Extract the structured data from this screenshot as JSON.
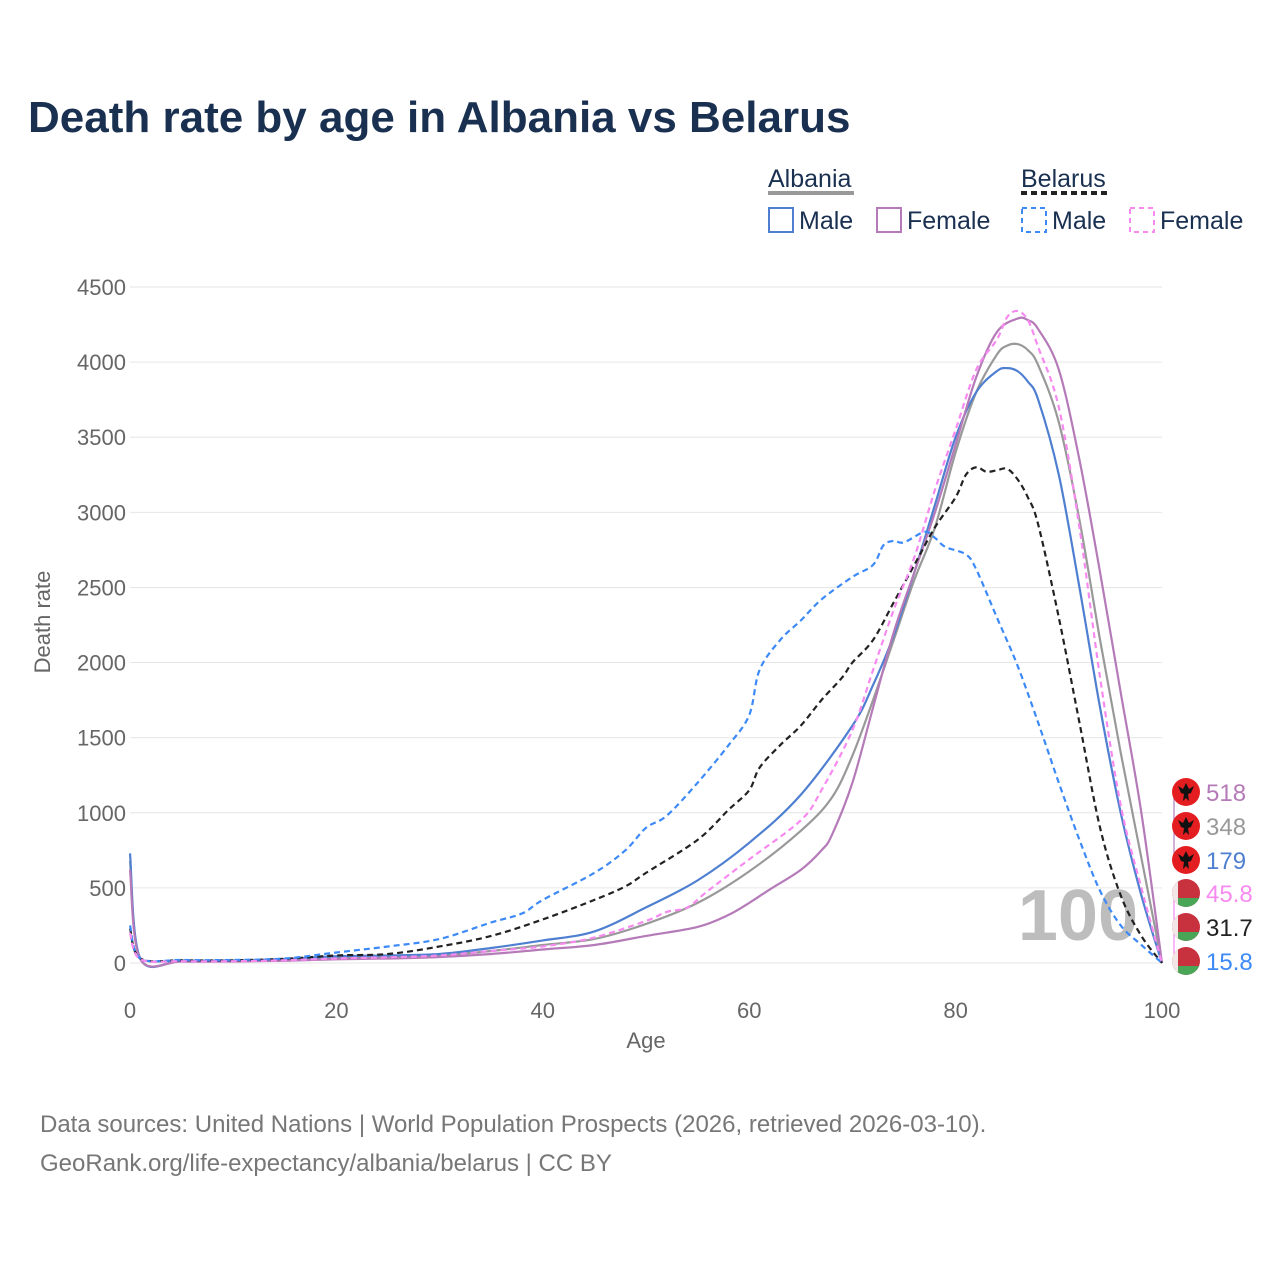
{
  "chart_data": {
    "type": "line",
    "title": "Death rate by age in Albania vs Belarus",
    "xlabel": "Age",
    "ylabel": "Death rate",
    "xlim": [
      0,
      100
    ],
    "ylim": [
      0,
      4500
    ],
    "xticks": [
      0,
      20,
      40,
      60,
      80,
      100
    ],
    "yticks": [
      0,
      500,
      1000,
      1500,
      2000,
      2500,
      3000,
      3500,
      4000,
      4500
    ],
    "grid": true,
    "legend": {
      "placement": "top-right",
      "groups": [
        {
          "label": "Albania",
          "items": [
            "Male",
            "Female"
          ]
        },
        {
          "label": "Belarus",
          "items": [
            "Male",
            "Female"
          ]
        }
      ]
    },
    "highlight_age": "100",
    "series": [
      {
        "name": "Albania Total",
        "color": "#999999",
        "dashed": false,
        "points": [
          [
            0,
            680
          ],
          [
            1,
            28
          ],
          [
            5,
            12
          ],
          [
            10,
            12
          ],
          [
            15,
            20
          ],
          [
            20,
            35
          ],
          [
            25,
            40
          ],
          [
            30,
            50
          ],
          [
            35,
            80
          ],
          [
            40,
            120
          ],
          [
            45,
            160
          ],
          [
            50,
            260
          ],
          [
            55,
            400
          ],
          [
            60,
            610
          ],
          [
            65,
            880
          ],
          [
            68,
            1100
          ],
          [
            70,
            1380
          ],
          [
            72,
            1750
          ],
          [
            74,
            2150
          ],
          [
            76,
            2550
          ],
          [
            78,
            2900
          ],
          [
            80,
            3400
          ],
          [
            82,
            3800
          ],
          [
            84,
            4050
          ],
          [
            85,
            4110
          ],
          [
            86,
            4120
          ],
          [
            87,
            4080
          ],
          [
            88,
            3980
          ],
          [
            90,
            3600
          ],
          [
            92,
            2950
          ],
          [
            94,
            2150
          ],
          [
            96,
            1400
          ],
          [
            98,
            700
          ],
          [
            100,
            0
          ]
        ]
      },
      {
        "name": "Albania Male",
        "color": "#4f7fd0",
        "dashed": false,
        "points": [
          [
            0,
            730
          ],
          [
            1,
            30
          ],
          [
            5,
            15
          ],
          [
            10,
            15
          ],
          [
            15,
            25
          ],
          [
            20,
            45
          ],
          [
            25,
            50
          ],
          [
            30,
            60
          ],
          [
            35,
            100
          ],
          [
            40,
            150
          ],
          [
            45,
            210
          ],
          [
            50,
            370
          ],
          [
            55,
            550
          ],
          [
            60,
            800
          ],
          [
            65,
            1120
          ],
          [
            70,
            1580
          ],
          [
            72,
            1850
          ],
          [
            74,
            2180
          ],
          [
            76,
            2600
          ],
          [
            78,
            3050
          ],
          [
            80,
            3500
          ],
          [
            82,
            3800
          ],
          [
            84,
            3940
          ],
          [
            85,
            3960
          ],
          [
            86,
            3940
          ],
          [
            87,
            3870
          ],
          [
            88,
            3750
          ],
          [
            90,
            3250
          ],
          [
            92,
            2500
          ],
          [
            94,
            1700
          ],
          [
            96,
            1000
          ],
          [
            98,
            450
          ],
          [
            100,
            0
          ]
        ]
      },
      {
        "name": "Albania Female",
        "color": "#b57ab8",
        "dashed": false,
        "points": [
          [
            0,
            620
          ],
          [
            1,
            25
          ],
          [
            5,
            10
          ],
          [
            10,
            10
          ],
          [
            15,
            15
          ],
          [
            20,
            25
          ],
          [
            25,
            30
          ],
          [
            30,
            40
          ],
          [
            35,
            60
          ],
          [
            40,
            90
          ],
          [
            45,
            120
          ],
          [
            50,
            180
          ],
          [
            55,
            240
          ],
          [
            58,
            320
          ],
          [
            60,
            400
          ],
          [
            62,
            490
          ],
          [
            65,
            620
          ],
          [
            67,
            750
          ],
          [
            68,
            850
          ],
          [
            70,
            1200
          ],
          [
            72,
            1700
          ],
          [
            74,
            2200
          ],
          [
            76,
            2600
          ],
          [
            78,
            3000
          ],
          [
            80,
            3450
          ],
          [
            82,
            3900
          ],
          [
            84,
            4200
          ],
          [
            86,
            4290
          ],
          [
            87,
            4280
          ],
          [
            88,
            4220
          ],
          [
            90,
            3950
          ],
          [
            92,
            3350
          ],
          [
            94,
            2600
          ],
          [
            96,
            1800
          ],
          [
            98,
            1000
          ],
          [
            100,
            0
          ]
        ]
      },
      {
        "name": "Belarus Total",
        "color": "#222222",
        "dashed": true,
        "points": [
          [
            0,
            230
          ],
          [
            1,
            30
          ],
          [
            5,
            18
          ],
          [
            10,
            18
          ],
          [
            15,
            28
          ],
          [
            20,
            50
          ],
          [
            25,
            60
          ],
          [
            30,
            110
          ],
          [
            35,
            180
          ],
          [
            40,
            290
          ],
          [
            45,
            420
          ],
          [
            48,
            510
          ],
          [
            50,
            600
          ],
          [
            55,
            820
          ],
          [
            58,
            1020
          ],
          [
            60,
            1150
          ],
          [
            61,
            1300
          ],
          [
            63,
            1450
          ],
          [
            65,
            1580
          ],
          [
            67,
            1750
          ],
          [
            69,
            1900
          ],
          [
            70,
            2000
          ],
          [
            72,
            2150
          ],
          [
            74,
            2400
          ],
          [
            76,
            2650
          ],
          [
            78,
            2900
          ],
          [
            80,
            3100
          ],
          [
            81,
            3250
          ],
          [
            82,
            3300
          ],
          [
            83,
            3270
          ],
          [
            84,
            3280
          ],
          [
            85,
            3290
          ],
          [
            86,
            3220
          ],
          [
            87,
            3100
          ],
          [
            88,
            2920
          ],
          [
            90,
            2300
          ],
          [
            92,
            1600
          ],
          [
            94,
            900
          ],
          [
            96,
            450
          ],
          [
            98,
            180
          ],
          [
            100,
            0
          ]
        ]
      },
      {
        "name": "Belarus Male",
        "color": "#3d8af7",
        "dashed": true,
        "points": [
          [
            0,
            250
          ],
          [
            1,
            30
          ],
          [
            5,
            20
          ],
          [
            10,
            20
          ],
          [
            15,
            30
          ],
          [
            20,
            70
          ],
          [
            25,
            110
          ],
          [
            30,
            160
          ],
          [
            35,
            270
          ],
          [
            38,
            330
          ],
          [
            40,
            420
          ],
          [
            45,
            600
          ],
          [
            48,
            750
          ],
          [
            50,
            900
          ],
          [
            52,
            980
          ],
          [
            55,
            1200
          ],
          [
            58,
            1450
          ],
          [
            60,
            1650
          ],
          [
            61,
            1950
          ],
          [
            63,
            2150
          ],
          [
            65,
            2280
          ],
          [
            67,
            2420
          ],
          [
            70,
            2570
          ],
          [
            72,
            2650
          ],
          [
            73,
            2780
          ],
          [
            74,
            2810
          ],
          [
            75,
            2800
          ],
          [
            77,
            2870
          ],
          [
            78,
            2830
          ],
          [
            79,
            2770
          ],
          [
            81,
            2720
          ],
          [
            82,
            2620
          ],
          [
            84,
            2300
          ],
          [
            86,
            1980
          ],
          [
            88,
            1600
          ],
          [
            90,
            1200
          ],
          [
            92,
            820
          ],
          [
            94,
            480
          ],
          [
            96,
            250
          ],
          [
            98,
            120
          ],
          [
            100,
            0
          ]
        ]
      },
      {
        "name": "Belarus Female",
        "color": "#f78af0",
        "dashed": true,
        "points": [
          [
            0,
            200
          ],
          [
            1,
            25
          ],
          [
            5,
            12
          ],
          [
            10,
            12
          ],
          [
            15,
            18
          ],
          [
            20,
            30
          ],
          [
            25,
            38
          ],
          [
            30,
            50
          ],
          [
            35,
            80
          ],
          [
            40,
            110
          ],
          [
            45,
            170
          ],
          [
            50,
            280
          ],
          [
            52,
            340
          ],
          [
            54,
            370
          ],
          [
            56,
            480
          ],
          [
            60,
            690
          ],
          [
            65,
            950
          ],
          [
            67,
            1150
          ],
          [
            70,
            1550
          ],
          [
            72,
            1950
          ],
          [
            74,
            2350
          ],
          [
            76,
            2700
          ],
          [
            78,
            3150
          ],
          [
            80,
            3550
          ],
          [
            82,
            3950
          ],
          [
            84,
            4150
          ],
          [
            85,
            4300
          ],
          [
            86,
            4340
          ],
          [
            87,
            4280
          ],
          [
            88,
            4100
          ],
          [
            90,
            3700
          ],
          [
            92,
            2900
          ],
          [
            94,
            1900
          ],
          [
            96,
            1050
          ],
          [
            98,
            500
          ],
          [
            100,
            0
          ]
        ]
      }
    ],
    "end_labels": [
      {
        "country": "Albania",
        "value": "518",
        "color": "#b57ab8"
      },
      {
        "country": "Albania",
        "value": "348",
        "color": "#999999"
      },
      {
        "country": "Albania",
        "value": "179",
        "color": "#4f7fd0"
      },
      {
        "country": "Belarus",
        "value": "45.8",
        "color": "#f78af0"
      },
      {
        "country": "Belarus",
        "value": "31.7",
        "color": "#222222"
      },
      {
        "country": "Belarus",
        "value": "15.8",
        "color": "#3d8af7"
      }
    ]
  },
  "footer": {
    "line1": "Data sources: United Nations | World Population Prospects (2026, retrieved 2026-03-10).",
    "line2": "GeoRank.org/life-expectancy/albania/belarus | CC BY"
  }
}
